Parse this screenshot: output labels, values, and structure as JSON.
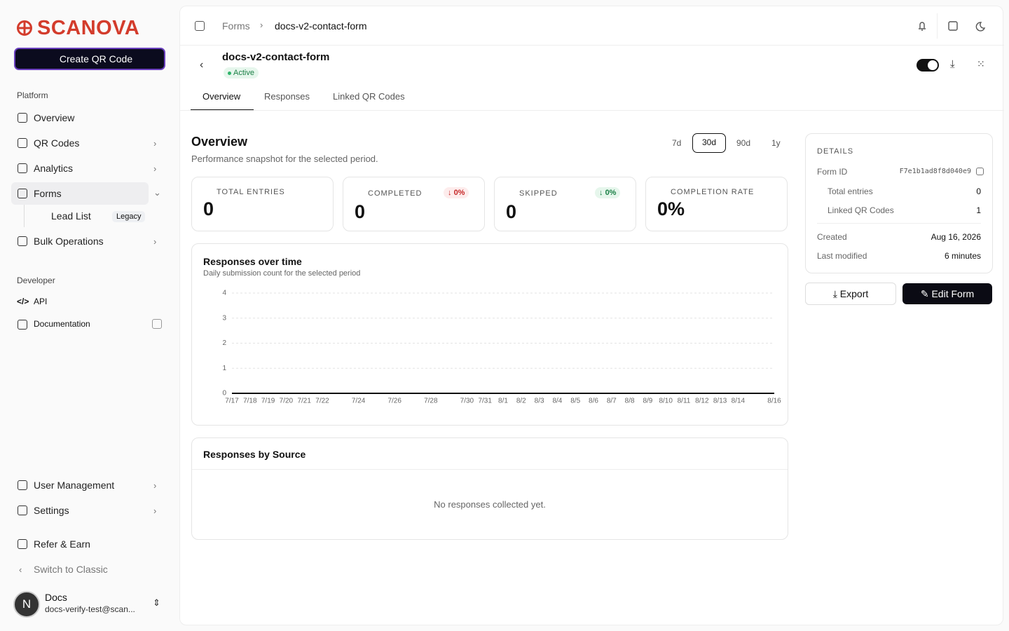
{
  "sidebar": {
    "brand": "SCANOVA",
    "create_button": "Create QR Code",
    "sections": [
      {
        "title": "Platform",
        "items": [
          "Overview",
          "QR Codes",
          "Analytics",
          "Forms"
        ]
      },
      {
        "title": "Developer",
        "items": [
          "API",
          "Documentation"
        ]
      }
    ],
    "sub_item": {
      "label": "Lead List",
      "badge": "Legacy"
    },
    "bulk": "Bulk Operations",
    "bottom_items": [
      "User Management",
      "Settings",
      "Refer & Earn",
      "Switch to Classic"
    ],
    "user": {
      "initial": "N",
      "name": "Docs",
      "email": "docs-verify-test@scan..."
    }
  },
  "header": {
    "breadcrumb": [
      "Forms",
      "docs-v2-contact-form"
    ]
  },
  "form": {
    "title": "docs-v2-contact-form",
    "status": "Active",
    "tabs": [
      "Overview",
      "Responses",
      "Linked QR Codes"
    ]
  },
  "overview": {
    "title": "Overview",
    "subtitle": "Performance snapshot for the selected period.",
    "periods": [
      "7d",
      "30d",
      "90d",
      "1y"
    ],
    "stats": [
      {
        "label": "TOTAL ENTRIES",
        "value": "0"
      },
      {
        "label": "COMPLETED",
        "value": "0",
        "badge": "0%"
      },
      {
        "label": "SKIPPED",
        "value": "0",
        "badge": "0%"
      },
      {
        "label": "COMPLETION RATE",
        "value": "0%"
      }
    ]
  },
  "chart_data": {
    "type": "line",
    "title": "Responses over time",
    "subtitle": "Daily submission count for the selected period",
    "categories": [
      "7/17",
      "7/18",
      "7/19",
      "7/20",
      "7/21",
      "7/22",
      null,
      "7/24",
      null,
      "7/26",
      null,
      "7/28",
      null,
      "7/30",
      "7/31",
      "8/1",
      "8/2",
      "8/3",
      "8/4",
      "8/5",
      "8/6",
      "8/7",
      "8/8",
      "8/9",
      "8/10",
      "8/11",
      "8/12",
      "8/13",
      "8/14",
      null,
      "8/16"
    ],
    "values": [
      0,
      0,
      0,
      0,
      0,
      0,
      0,
      0,
      0,
      0,
      0,
      0,
      0,
      0,
      0,
      0,
      0,
      0,
      0,
      0,
      0,
      0,
      0,
      0,
      0,
      0,
      0,
      0,
      0,
      0,
      0
    ],
    "color": "#111111",
    "ylim": [
      0,
      4
    ],
    "yticks": [
      0,
      1,
      2,
      3,
      4
    ],
    "grid": true
  },
  "sources": {
    "title": "Responses by Source",
    "empty": "No responses collected yet."
  },
  "details": {
    "title": "DETAILS",
    "rows": [
      [
        "Form ID",
        "F7e1b1ad8f8d040e9"
      ],
      [
        "Total entries",
        "0"
      ],
      [
        "Linked QR Codes",
        "1"
      ],
      [
        "Created",
        "Aug 16, 2026"
      ],
      [
        "Last modified",
        "6 minutes"
      ]
    ],
    "export": "Export",
    "edit": "Edit Form"
  }
}
